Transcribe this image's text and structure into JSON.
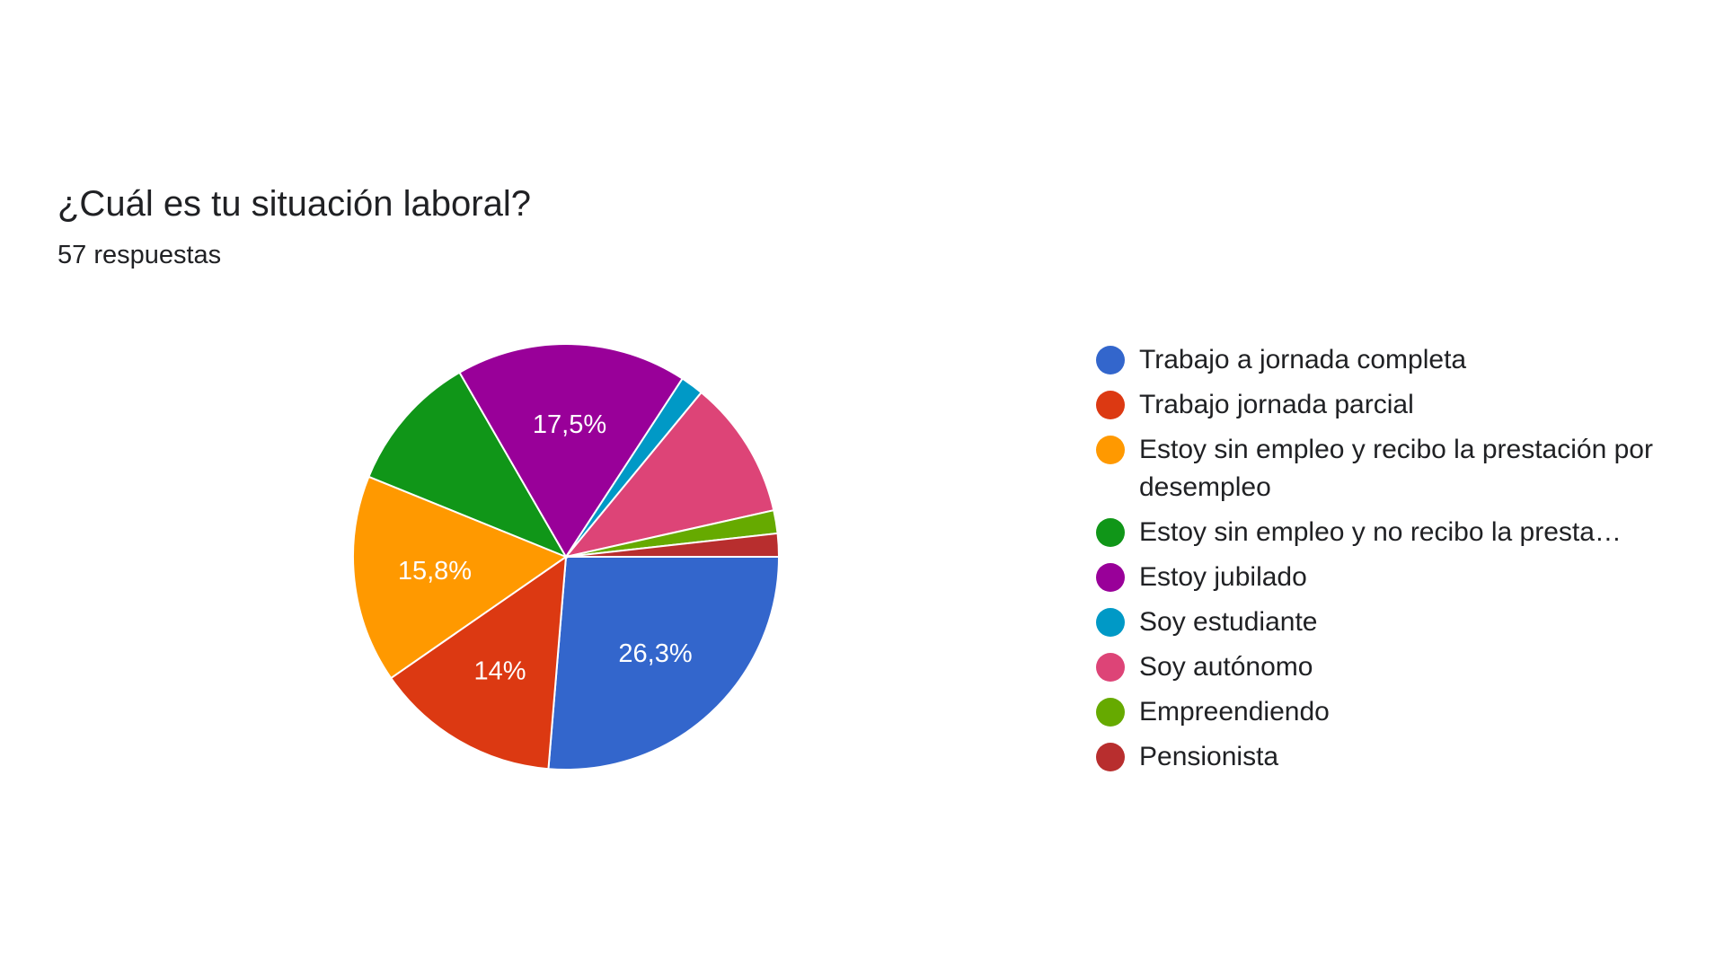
{
  "header": {
    "title": "¿Cuál es tu situación laboral?",
    "subtitle": "57 respuestas"
  },
  "chart_data": {
    "type": "pie",
    "title": "¿Cuál es tu situación laboral?",
    "total_responses": 57,
    "start_angle_deg": 90,
    "direction": "clockwise",
    "legend_position": "right",
    "slices": [
      {
        "label": "Trabajo a jornada completa",
        "count": 15,
        "percent": 26.3,
        "display": "26,3%",
        "color": "#3366cc"
      },
      {
        "label": "Trabajo jornada parcial",
        "count": 8,
        "percent": 14.0,
        "display": "14%",
        "color": "#dc3912"
      },
      {
        "label": "Estoy sin empleo y recibo la prestación por desempleo",
        "count": 9,
        "percent": 15.8,
        "display": "15,8%",
        "color": "#ff9900"
      },
      {
        "label": "Estoy sin empleo y no recibo la presta…",
        "count": 6,
        "percent": 10.5,
        "display": "",
        "color": "#109618"
      },
      {
        "label": "Estoy jubilado",
        "count": 10,
        "percent": 17.5,
        "display": "17,5%",
        "color": "#990099"
      },
      {
        "label": "Soy estudiante",
        "count": 1,
        "percent": 1.8,
        "display": "",
        "color": "#0099c6"
      },
      {
        "label": "Soy autónomo",
        "count": 6,
        "percent": 10.5,
        "display": "",
        "color": "#dd4477"
      },
      {
        "label": "Empreendiendo",
        "count": 1,
        "percent": 1.8,
        "display": "",
        "color": "#66aa00"
      },
      {
        "label": "Pensionista",
        "count": 1,
        "percent": 1.8,
        "display": "",
        "color": "#b82e2e"
      }
    ]
  },
  "legend": {
    "items": [
      {
        "label": "Trabajo a jornada completa",
        "color": "#3366cc"
      },
      {
        "label": "Trabajo jornada parcial",
        "color": "#dc3912"
      },
      {
        "label": "Estoy sin empleo y recibo la prestación por desempleo",
        "color": "#ff9900"
      },
      {
        "label": "Estoy sin empleo y no recibo la presta…",
        "color": "#109618"
      },
      {
        "label": "Estoy jubilado",
        "color": "#990099"
      },
      {
        "label": "Soy estudiante",
        "color": "#0099c6"
      },
      {
        "label": "Soy autónomo",
        "color": "#dd4477"
      },
      {
        "label": "Empreendiendo",
        "color": "#66aa00"
      },
      {
        "label": "Pensionista",
        "color": "#b82e2e"
      }
    ]
  }
}
